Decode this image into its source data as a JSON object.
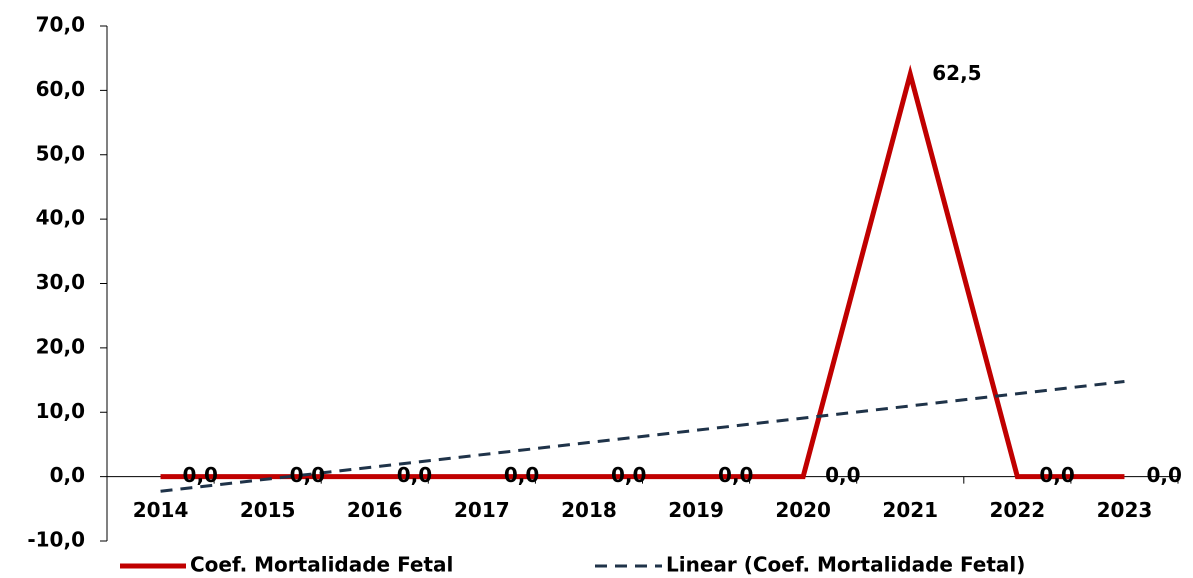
{
  "chart_data": {
    "type": "line",
    "categories": [
      "2014",
      "2015",
      "2016",
      "2017",
      "2018",
      "2019",
      "2020",
      "2021",
      "2022",
      "2023"
    ],
    "series": [
      {
        "name": "Coef. Mortalidade Fetal",
        "color": "#c00000",
        "values": [
          0,
          0,
          0,
          0,
          0,
          0,
          0,
          62.5,
          0,
          0
        ],
        "value_labels": [
          "0,0",
          "0,0",
          "0,0",
          "0,0",
          "0,0",
          "0,0",
          "0,0",
          "62,5",
          "0,0",
          "0,0"
        ]
      }
    ],
    "trendline": {
      "name": "Linear (Coef. Mortalidade Fetal)",
      "color": "#1f3349",
      "type": "linear"
    },
    "ylim": [
      -10,
      70
    ],
    "yticks": [
      {
        "value": -10,
        "label": "-10,0"
      },
      {
        "value": 0,
        "label": "0,0"
      },
      {
        "value": 10,
        "label": "10,0"
      },
      {
        "value": 20,
        "label": "20,0"
      },
      {
        "value": 30,
        "label": "30,0"
      },
      {
        "value": 40,
        "label": "40,0"
      },
      {
        "value": 50,
        "label": "50,0"
      },
      {
        "value": 60,
        "label": "60,0"
      },
      {
        "value": 70,
        "label": "70,0"
      }
    ],
    "legend": "bottom"
  }
}
